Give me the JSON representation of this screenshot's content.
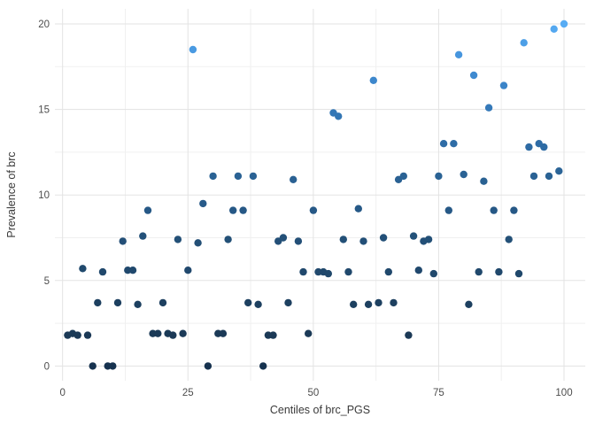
{
  "chart_data": {
    "type": "scatter",
    "title": "",
    "xlabel": "Centiles of brc_PGS",
    "ylabel": "Prevalence of brc",
    "x_ticks": [
      0,
      25,
      50,
      75,
      100
    ],
    "y_ticks": [
      0,
      5,
      10,
      15,
      20
    ],
    "x_minor_ticks": [
      12.5,
      37.5,
      62.5,
      87.5
    ],
    "y_minor_ticks": [
      2.5,
      7.5,
      12.5,
      17.5
    ],
    "xlim": [
      -1.5,
      104.3
    ],
    "ylim": [
      -0.9,
      20.9
    ],
    "grid": true,
    "legend_position": "none",
    "points": [
      [
        1,
        1.8
      ],
      [
        2,
        1.9
      ],
      [
        3,
        1.8
      ],
      [
        4,
        5.7
      ],
      [
        5,
        1.8
      ],
      [
        6,
        0
      ],
      [
        7,
        3.7
      ],
      [
        8,
        5.5
      ],
      [
        9,
        0
      ],
      [
        10,
        0
      ],
      [
        11,
        3.7
      ],
      [
        12,
        7.3
      ],
      [
        13,
        5.6
      ],
      [
        14,
        5.6
      ],
      [
        15,
        3.6
      ],
      [
        16,
        7.6
      ],
      [
        17,
        9.1
      ],
      [
        18,
        1.9
      ],
      [
        19,
        1.9
      ],
      [
        20,
        3.7
      ],
      [
        21,
        1.9
      ],
      [
        22,
        1.8
      ],
      [
        23,
        7.4
      ],
      [
        24,
        1.9
      ],
      [
        25,
        5.6
      ],
      [
        26,
        18.5
      ],
      [
        27,
        7.2
      ],
      [
        28,
        9.5
      ],
      [
        29,
        0
      ],
      [
        30,
        11.1
      ],
      [
        31,
        1.9
      ],
      [
        32,
        1.9
      ],
      [
        33,
        7.4
      ],
      [
        34,
        9.1
      ],
      [
        35,
        11.1
      ],
      [
        36,
        9.1
      ],
      [
        37,
        3.7
      ],
      [
        38,
        11.1
      ],
      [
        39,
        3.6
      ],
      [
        40,
        0
      ],
      [
        41,
        1.8
      ],
      [
        42,
        1.8
      ],
      [
        43,
        7.3
      ],
      [
        44,
        7.5
      ],
      [
        45,
        3.7
      ],
      [
        46,
        10.9
      ],
      [
        47,
        7.3
      ],
      [
        48,
        5.5
      ],
      [
        49,
        1.9
      ],
      [
        50,
        9.1
      ],
      [
        51,
        5.5
      ],
      [
        52,
        5.5
      ],
      [
        53,
        5.4
      ],
      [
        54,
        14.8
      ],
      [
        55,
        14.6
      ],
      [
        56,
        7.4
      ],
      [
        57,
        5.5
      ],
      [
        58,
        3.6
      ],
      [
        59,
        9.2
      ],
      [
        60,
        7.3
      ],
      [
        61,
        3.6
      ],
      [
        62,
        16.7
      ],
      [
        63,
        3.7
      ],
      [
        64,
        7.5
      ],
      [
        65,
        5.5
      ],
      [
        66,
        3.7
      ],
      [
        67,
        10.9
      ],
      [
        68,
        11.1
      ],
      [
        69,
        1.8
      ],
      [
        70,
        7.6
      ],
      [
        71,
        5.6
      ],
      [
        72,
        7.3
      ],
      [
        73,
        7.4
      ],
      [
        74,
        5.4
      ],
      [
        75,
        11.1
      ],
      [
        76,
        13.0
      ],
      [
        77,
        9.1
      ],
      [
        78,
        13.0
      ],
      [
        79,
        18.2
      ],
      [
        80,
        11.2
      ],
      [
        81,
        3.6
      ],
      [
        82,
        17.0
      ],
      [
        83,
        5.5
      ],
      [
        84,
        10.8
      ],
      [
        85,
        15.1
      ],
      [
        86,
        9.1
      ],
      [
        87,
        5.5
      ],
      [
        88,
        16.4
      ],
      [
        89,
        7.4
      ],
      [
        90,
        9.1
      ],
      [
        91,
        5.4
      ],
      [
        92,
        18.9
      ],
      [
        93,
        12.8
      ],
      [
        94,
        11.1
      ],
      [
        95,
        13.0
      ],
      [
        96,
        12.8
      ],
      [
        97,
        11.1
      ],
      [
        98,
        19.7
      ],
      [
        99,
        11.4
      ],
      [
        100,
        20.0
      ]
    ],
    "color_scale": {
      "mapped_to": "y",
      "stops": [
        [
          0.0,
          "#16324F"
        ],
        [
          2.0,
          "#1B3A57"
        ],
        [
          4.0,
          "#1D4162"
        ],
        [
          5.5,
          "#20486C"
        ],
        [
          7.5,
          "#235078"
        ],
        [
          9.1,
          "#265886"
        ],
        [
          11.1,
          "#2A6294"
        ],
        [
          13.0,
          "#2E6CA6"
        ],
        [
          15.0,
          "#3478B8"
        ],
        [
          16.7,
          "#3D87CC"
        ],
        [
          18.2,
          "#4796DE"
        ],
        [
          20.0,
          "#57ACF4"
        ]
      ]
    },
    "style": {
      "background": "#ffffff",
      "grid_major_color": "#e3e3e3",
      "grid_minor_color": "#f0f0f0",
      "tick_label_color": "#4d4d4d",
      "axis_title_color": "#3a3a3a",
      "point_radius": 4.2
    }
  }
}
